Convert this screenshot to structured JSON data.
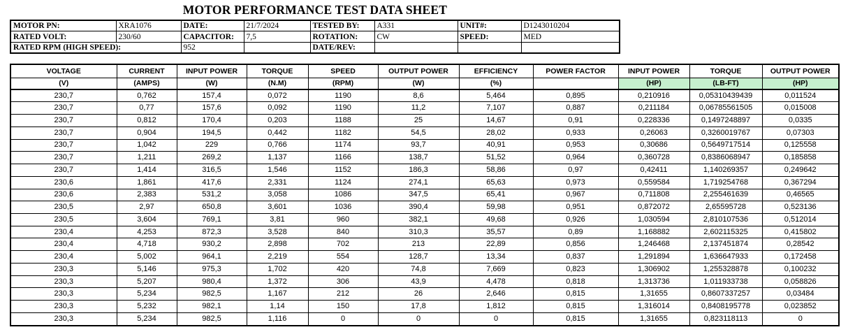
{
  "title": "MOTOR PERFORMANCE TEST DATA SHEET",
  "colors": {
    "highlight_green": "#C6EFCE",
    "border": "#000000"
  },
  "info_table": {
    "rows": [
      {
        "cells": [
          {
            "text": "MOTOR PN:",
            "bold": true
          },
          {
            "text": "XRA1076"
          },
          {
            "text": "DATE:",
            "bold": true
          },
          {
            "text": "21/7/2024"
          },
          {
            "text": "TESTED BY:",
            "bold": true
          },
          {
            "text": "A331"
          },
          {
            "text": "UNIT#:",
            "bold": true
          },
          {
            "text": "D1243010204"
          }
        ]
      },
      {
        "cells": [
          {
            "text": "RATED VOLT:",
            "bold": true
          },
          {
            "text": "230/60"
          },
          {
            "text": "CAPACITOR:",
            "bold": true
          },
          {
            "text": "7,5"
          },
          {
            "text": "ROTATION:",
            "bold": true
          },
          {
            "text": "CW"
          },
          {
            "text": "SPEED:",
            "bold": true
          },
          {
            "text": "MED"
          }
        ]
      },
      {
        "cells": [
          {
            "text": "RATED RPM (HIGH SPEED):",
            "bold": true,
            "colspan": 2
          },
          {
            "text": "952"
          },
          {
            "text": ""
          },
          {
            "text": "DATE/REV:",
            "bold": true
          },
          {
            "text": ""
          },
          {
            "text": ""
          },
          {
            "text": ""
          }
        ]
      }
    ]
  },
  "data_table": {
    "columns": [
      {
        "name": "VOLTAGE",
        "unit": "(V)",
        "highlight": false
      },
      {
        "name": "CURRENT",
        "unit": "(AMPS)",
        "highlight": false
      },
      {
        "name": "INPUT POWER",
        "unit": "(W)",
        "highlight": false
      },
      {
        "name": "TORQUE",
        "unit": "(N.M)",
        "highlight": false
      },
      {
        "name": "SPEED",
        "unit": "(RPM)",
        "highlight": false
      },
      {
        "name": "OUTPUT POWER",
        "unit": "(W)",
        "highlight": false
      },
      {
        "name": "EFFICIENCY",
        "unit": "(%)",
        "highlight": false
      },
      {
        "name": "POWER FACTOR",
        "unit": "",
        "highlight": false
      },
      {
        "name": "INPUT POWER",
        "unit": "(HP)",
        "highlight": true
      },
      {
        "name": "TORQUE",
        "unit": "(LB-FT)",
        "highlight": true
      },
      {
        "name": "OUTPUT POWER",
        "unit": "(HP)",
        "highlight": true
      }
    ],
    "rows": [
      [
        "230,7",
        "0,762",
        "157,4",
        "0,072",
        "1190",
        "8,6",
        "5,464",
        "0,895",
        "0,210916",
        "0,05310439439",
        "0,011524"
      ],
      [
        "230,7",
        "0,77",
        "157,6",
        "0,092",
        "1190",
        "11,2",
        "7,107",
        "0,887",
        "0,211184",
        "0,06785561505",
        "0,015008"
      ],
      [
        "230,7",
        "0,812",
        "170,4",
        "0,203",
        "1188",
        "25",
        "14,67",
        "0,91",
        "0,228336",
        "0,1497248897",
        "0,0335"
      ],
      [
        "230,7",
        "0,904",
        "194,5",
        "0,442",
        "1182",
        "54,5",
        "28,02",
        "0,933",
        "0,26063",
        "0,3260019767",
        "0,07303"
      ],
      [
        "230,7",
        "1,042",
        "229",
        "0,766",
        "1174",
        "93,7",
        "40,91",
        "0,953",
        "0,30686",
        "0,5649717514",
        "0,125558"
      ],
      [
        "230,7",
        "1,211",
        "269,2",
        "1,137",
        "1166",
        "138,7",
        "51,52",
        "0,964",
        "0,360728",
        "0,8386068947",
        "0,185858"
      ],
      [
        "230,7",
        "1,414",
        "316,5",
        "1,546",
        "1152",
        "186,3",
        "58,86",
        "0,97",
        "0,42411",
        "1,140269357",
        "0,249642"
      ],
      [
        "230,6",
        "1,861",
        "417,6",
        "2,331",
        "1124",
        "274,1",
        "65,63",
        "0,973",
        "0,559584",
        "1,719254768",
        "0,367294"
      ],
      [
        "230,6",
        "2,383",
        "531,2",
        "3,058",
        "1086",
        "347,5",
        "65,41",
        "0,967",
        "0,711808",
        "2,255461639",
        "0,46565"
      ],
      [
        "230,5",
        "2,97",
        "650,8",
        "3,601",
        "1036",
        "390,4",
        "59,98",
        "0,951",
        "0,872072",
        "2,65595728",
        "0,523136"
      ],
      [
        "230,5",
        "3,604",
        "769,1",
        "3,81",
        "960",
        "382,1",
        "49,68",
        "0,926",
        "1,030594",
        "2,810107536",
        "0,512014"
      ],
      [
        "230,4",
        "4,253",
        "872,3",
        "3,528",
        "840",
        "310,3",
        "35,57",
        "0,89",
        "1,168882",
        "2,602115325",
        "0,415802"
      ],
      [
        "230,4",
        "4,718",
        "930,2",
        "2,898",
        "702",
        "213",
        "22,89",
        "0,856",
        "1,246468",
        "2,137451874",
        "0,28542"
      ],
      [
        "230,4",
        "5,002",
        "964,1",
        "2,219",
        "554",
        "128,7",
        "13,34",
        "0,837",
        "1,291894",
        "1,636647933",
        "0,172458"
      ],
      [
        "230,3",
        "5,146",
        "975,3",
        "1,702",
        "420",
        "74,8",
        "7,669",
        "0,823",
        "1,306902",
        "1,255328878",
        "0,100232"
      ],
      [
        "230,3",
        "5,207",
        "980,4",
        "1,372",
        "306",
        "43,9",
        "4,478",
        "0,818",
        "1,313736",
        "1,011933738",
        "0,058826"
      ],
      [
        "230,3",
        "5,234",
        "982,5",
        "1,167",
        "212",
        "26",
        "2,646",
        "0,815",
        "1,31655",
        "0,8607337257",
        "0,03484"
      ],
      [
        "230,3",
        "5,232",
        "982,1",
        "1,14",
        "150",
        "17,8",
        "1,812",
        "0,815",
        "1,316014",
        "0,8408195778",
        "0,023852"
      ],
      [
        "230,3",
        "5,234",
        "982,5",
        "1,116",
        "0",
        "0",
        "0",
        "0,815",
        "1,31655",
        "0,823118113",
        "0"
      ]
    ]
  }
}
